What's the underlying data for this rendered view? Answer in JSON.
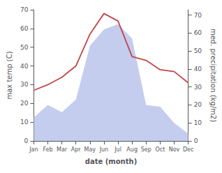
{
  "chart_data": {
    "type": "line",
    "categories": [
      "Jan",
      "Feb",
      "Mar",
      "Apr",
      "May",
      "Jun",
      "Jul",
      "Aug",
      "Sep",
      "Oct",
      "Nov",
      "Dec"
    ],
    "xlabel": "date (month)",
    "ylabel": "max temp (C)",
    "y2label": "med. precipitation (kg/m2)",
    "ylim": [
      0,
      70
    ],
    "yticks": [
      0,
      10,
      20,
      30,
      40,
      50,
      60,
      70
    ],
    "y2lim": [
      0,
      73
    ],
    "y2ticks": [
      0,
      10,
      20,
      30,
      40,
      50,
      60,
      70
    ],
    "grid": false,
    "series": [
      {
        "type": "area",
        "axis": "y2",
        "color": "#b0bce8",
        "values": [
          13,
          20,
          16,
          23,
          53,
          62,
          65,
          57,
          20,
          19,
          10,
          4
        ]
      },
      {
        "type": "line",
        "color": "#c0474a",
        "values": [
          27,
          30,
          34,
          40,
          57,
          68,
          64,
          45,
          43,
          38,
          37,
          31
        ]
      }
    ]
  }
}
